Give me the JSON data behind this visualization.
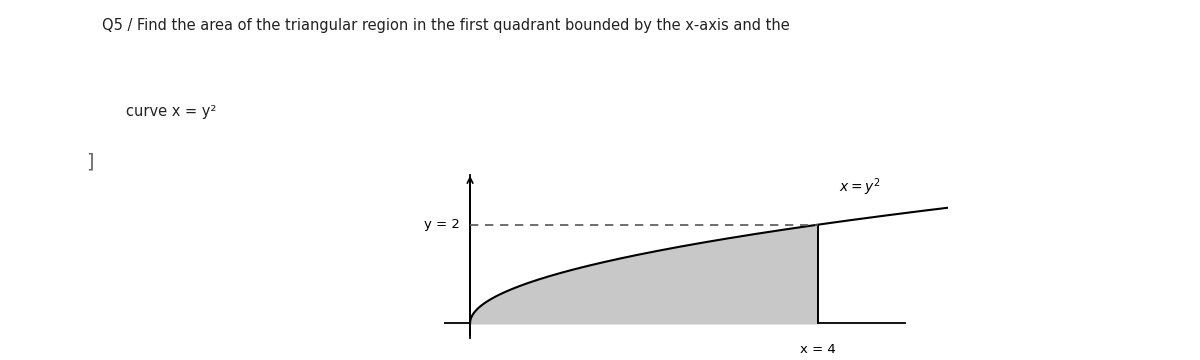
{
  "title_line1": "Q5 / Find the area of the triangular region in the first quadrant bounded by the x-axis and the",
  "title_line2": "curve x = y²",
  "background_color": "#ffffff",
  "fill_color": "#c8c8c8",
  "curve_color": "#000000",
  "dashed_color": "#555555",
  "label_y2": "y = 2",
  "label_x4": "x = 4",
  "label_curve": "x = y$^2$",
  "x_min": -0.3,
  "x_max": 5.5,
  "y_min": -0.6,
  "y_max": 3.2,
  "curve_y_max": 2.0,
  "x_vertical_line": 4.0,
  "fig_width": 12.0,
  "fig_height": 3.6,
  "dpi": 100
}
